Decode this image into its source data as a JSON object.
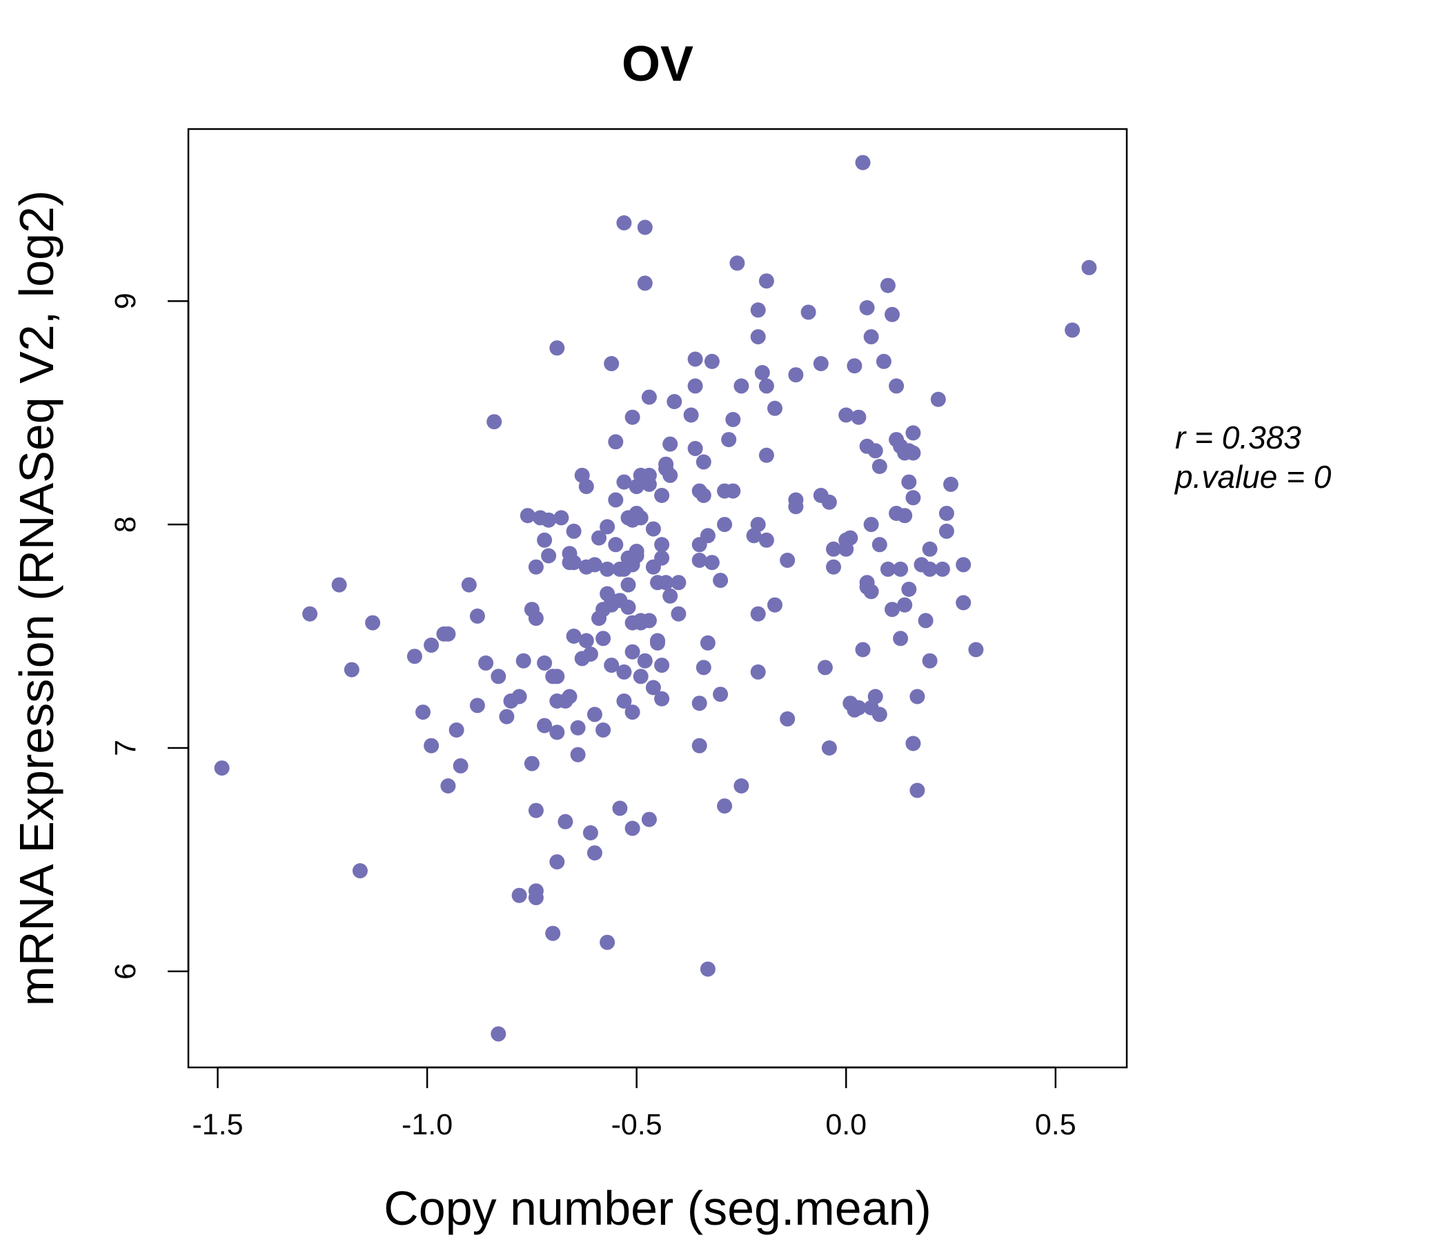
{
  "chart_data": {
    "type": "scatter",
    "title": "OV",
    "xlabel": "Copy number (seg.mean)",
    "ylabel": "mRNA Expression (RNASeq V2, log2)",
    "xlim": [
      -1.57,
      0.67
    ],
    "ylim": [
      5.57,
      9.77
    ],
    "xticks": [
      -1.5,
      -1.0,
      -0.5,
      0.0,
      0.5
    ],
    "xtick_labels": [
      "-1.5",
      "-1.0",
      "-0.5",
      "0.0",
      "0.5"
    ],
    "yticks": [
      6,
      7,
      8,
      9
    ],
    "ytick_labels": [
      "6",
      "7",
      "8",
      "9"
    ],
    "grid": false,
    "point_color": "#7470b5",
    "annotations": {
      "r_text": "r = 0.383",
      "p_text": "p.value = 0"
    },
    "points": [
      [
        -1.49,
        6.91
      ],
      [
        -1.28,
        7.6
      ],
      [
        -1.21,
        7.73
      ],
      [
        -1.18,
        7.35
      ],
      [
        -1.16,
        6.45
      ],
      [
        -1.13,
        7.56
      ],
      [
        -1.03,
        7.41
      ],
      [
        -1.01,
        7.16
      ],
      [
        -0.99,
        7.46
      ],
      [
        -0.99,
        7.01
      ],
      [
        -0.96,
        7.51
      ],
      [
        -0.95,
        7.51
      ],
      [
        -0.95,
        6.83
      ],
      [
        -0.93,
        7.08
      ],
      [
        -0.92,
        6.92
      ],
      [
        -0.9,
        7.73
      ],
      [
        -0.88,
        7.19
      ],
      [
        -0.88,
        7.59
      ],
      [
        -0.86,
        7.38
      ],
      [
        -0.84,
        8.46
      ],
      [
        -0.83,
        5.72
      ],
      [
        -0.83,
        7.32
      ],
      [
        -0.81,
        7.14
      ],
      [
        -0.8,
        7.21
      ],
      [
        -0.78,
        7.23
      ],
      [
        -0.78,
        6.34
      ],
      [
        -0.77,
        7.39
      ],
      [
        -0.76,
        8.04
      ],
      [
        -0.75,
        7.62
      ],
      [
        -0.75,
        6.93
      ],
      [
        -0.74,
        6.36
      ],
      [
        -0.74,
        6.33
      ],
      [
        -0.74,
        7.81
      ],
      [
        -0.74,
        7.58
      ],
      [
        -0.74,
        6.72
      ],
      [
        -0.73,
        8.03
      ],
      [
        -0.72,
        7.93
      ],
      [
        -0.72,
        7.38
      ],
      [
        -0.72,
        7.1
      ],
      [
        -0.71,
        8.02
      ],
      [
        -0.71,
        7.86
      ],
      [
        -0.7,
        7.32
      ],
      [
        -0.7,
        6.17
      ],
      [
        -0.69,
        7.32
      ],
      [
        -0.69,
        7.21
      ],
      [
        -0.69,
        6.49
      ],
      [
        -0.69,
        7.07
      ],
      [
        -0.69,
        8.79
      ],
      [
        -0.68,
        8.03
      ],
      [
        -0.67,
        7.21
      ],
      [
        -0.67,
        6.67
      ],
      [
        -0.66,
        7.23
      ],
      [
        -0.66,
        7.87
      ],
      [
        -0.66,
        7.83
      ],
      [
        -0.65,
        7.97
      ],
      [
        -0.65,
        7.5
      ],
      [
        -0.65,
        7.83
      ],
      [
        -0.64,
        7.09
      ],
      [
        -0.64,
        6.97
      ],
      [
        -0.63,
        8.22
      ],
      [
        -0.63,
        7.4
      ],
      [
        -0.62,
        8.17
      ],
      [
        -0.62,
        7.48
      ],
      [
        -0.62,
        7.81
      ],
      [
        -0.61,
        6.62
      ],
      [
        -0.61,
        7.42
      ],
      [
        -0.6,
        6.53
      ],
      [
        -0.6,
        7.82
      ],
      [
        -0.6,
        7.15
      ],
      [
        -0.59,
        7.94
      ],
      [
        -0.59,
        7.58
      ],
      [
        -0.58,
        7.62
      ],
      [
        -0.58,
        7.49
      ],
      [
        -0.58,
        7.08
      ],
      [
        -0.57,
        6.13
      ],
      [
        -0.57,
        7.99
      ],
      [
        -0.57,
        7.8
      ],
      [
        -0.57,
        7.69
      ],
      [
        -0.56,
        7.64
      ],
      [
        -0.56,
        7.66
      ],
      [
        -0.56,
        8.72
      ],
      [
        -0.56,
        7.37
      ],
      [
        -0.55,
        7.91
      ],
      [
        -0.55,
        8.37
      ],
      [
        -0.55,
        8.11
      ],
      [
        -0.54,
        7.8
      ],
      [
        -0.54,
        7.66
      ],
      [
        -0.54,
        6.73
      ],
      [
        -0.53,
        8.19
      ],
      [
        -0.53,
        9.35
      ],
      [
        -0.53,
        7.21
      ],
      [
        -0.53,
        7.34
      ],
      [
        -0.53,
        7.8
      ],
      [
        -0.52,
        7.85
      ],
      [
        -0.52,
        7.73
      ],
      [
        -0.52,
        7.63
      ],
      [
        -0.52,
        8.03
      ],
      [
        -0.51,
        8.48
      ],
      [
        -0.51,
        7.43
      ],
      [
        -0.51,
        7.16
      ],
      [
        -0.51,
        6.64
      ],
      [
        -0.51,
        7.82
      ],
      [
        -0.51,
        8.02
      ],
      [
        -0.51,
        7.56
      ],
      [
        -0.5,
        8.04
      ],
      [
        -0.5,
        7.86
      ],
      [
        -0.5,
        8.05
      ],
      [
        -0.5,
        8.17
      ],
      [
        -0.5,
        7.88
      ],
      [
        -0.49,
        7.56
      ],
      [
        -0.49,
        7.57
      ],
      [
        -0.49,
        8.03
      ],
      [
        -0.49,
        7.32
      ],
      [
        -0.49,
        8.22
      ],
      [
        -0.48,
        9.33
      ],
      [
        -0.48,
        8.2
      ],
      [
        -0.48,
        9.08
      ],
      [
        -0.48,
        7.39
      ],
      [
        -0.47,
        8.22
      ],
      [
        -0.47,
        6.68
      ],
      [
        -0.47,
        8.57
      ],
      [
        -0.47,
        8.18
      ],
      [
        -0.47,
        7.57
      ],
      [
        -0.46,
        7.98
      ],
      [
        -0.46,
        7.81
      ],
      [
        -0.46,
        7.27
      ],
      [
        -0.45,
        7.48
      ],
      [
        -0.45,
        7.74
      ],
      [
        -0.45,
        7.47
      ],
      [
        -0.44,
        7.91
      ],
      [
        -0.44,
        7.85
      ],
      [
        -0.44,
        7.22
      ],
      [
        -0.44,
        7.37
      ],
      [
        -0.44,
        8.13
      ],
      [
        -0.43,
        7.74
      ],
      [
        -0.43,
        8.25
      ],
      [
        -0.43,
        8.27
      ],
      [
        -0.42,
        7.68
      ],
      [
        -0.42,
        8.36
      ],
      [
        -0.42,
        8.22
      ],
      [
        -0.41,
        8.55
      ],
      [
        -0.4,
        7.74
      ],
      [
        -0.4,
        7.6
      ],
      [
        -0.37,
        8.49
      ],
      [
        -0.36,
        8.74
      ],
      [
        -0.36,
        8.62
      ],
      [
        -0.36,
        8.34
      ],
      [
        -0.35,
        8.15
      ],
      [
        -0.35,
        7.91
      ],
      [
        -0.35,
        7.84
      ],
      [
        -0.35,
        7.2
      ],
      [
        -0.35,
        7.01
      ],
      [
        -0.34,
        7.36
      ],
      [
        -0.34,
        8.13
      ],
      [
        -0.34,
        8.28
      ],
      [
        -0.33,
        6.01
      ],
      [
        -0.33,
        7.47
      ],
      [
        -0.33,
        7.95
      ],
      [
        -0.32,
        8.73
      ],
      [
        -0.32,
        7.83
      ],
      [
        -0.3,
        7.75
      ],
      [
        -0.3,
        7.24
      ],
      [
        -0.29,
        8.15
      ],
      [
        -0.29,
        8.0
      ],
      [
        -0.29,
        6.74
      ],
      [
        -0.28,
        8.38
      ],
      [
        -0.27,
        8.47
      ],
      [
        -0.27,
        8.15
      ],
      [
        -0.26,
        9.17
      ],
      [
        -0.25,
        8.62
      ],
      [
        -0.25,
        6.83
      ],
      [
        -0.22,
        7.95
      ],
      [
        -0.21,
        8.84
      ],
      [
        -0.21,
        8.96
      ],
      [
        -0.21,
        8.0
      ],
      [
        -0.21,
        7.6
      ],
      [
        -0.21,
        7.34
      ],
      [
        -0.2,
        8.68
      ],
      [
        -0.19,
        8.62
      ],
      [
        -0.19,
        7.93
      ],
      [
        -0.19,
        8.31
      ],
      [
        -0.19,
        9.09
      ],
      [
        -0.17,
        8.52
      ],
      [
        -0.17,
        7.64
      ],
      [
        -0.14,
        7.84
      ],
      [
        -0.14,
        7.13
      ],
      [
        -0.12,
        8.11
      ],
      [
        -0.12,
        8.08
      ],
      [
        -0.12,
        8.67
      ],
      [
        -0.09,
        8.95
      ],
      [
        -0.06,
        8.72
      ],
      [
        -0.06,
        8.13
      ],
      [
        -0.05,
        7.36
      ],
      [
        -0.04,
        8.1
      ],
      [
        -0.04,
        7.0
      ],
      [
        -0.03,
        7.81
      ],
      [
        -0.03,
        7.89
      ],
      [
        0.0,
        8.49
      ],
      [
        0.0,
        7.93
      ],
      [
        0.0,
        7.89
      ],
      [
        0.01,
        7.94
      ],
      [
        0.01,
        7.2
      ],
      [
        0.02,
        8.71
      ],
      [
        0.02,
        7.17
      ],
      [
        0.03,
        7.18
      ],
      [
        0.03,
        8.48
      ],
      [
        0.04,
        9.62
      ],
      [
        0.04,
        7.44
      ],
      [
        0.05,
        8.97
      ],
      [
        0.05,
        8.35
      ],
      [
        0.05,
        7.74
      ],
      [
        0.05,
        7.72
      ],
      [
        0.06,
        8.84
      ],
      [
        0.06,
        7.7
      ],
      [
        0.06,
        7.18
      ],
      [
        0.06,
        8.0
      ],
      [
        0.07,
        7.23
      ],
      [
        0.07,
        8.33
      ],
      [
        0.08,
        7.91
      ],
      [
        0.08,
        8.26
      ],
      [
        0.08,
        7.15
      ],
      [
        0.09,
        8.73
      ],
      [
        0.1,
        9.07
      ],
      [
        0.1,
        7.8
      ],
      [
        0.11,
        7.62
      ],
      [
        0.11,
        8.94
      ],
      [
        0.12,
        8.62
      ],
      [
        0.12,
        8.05
      ],
      [
        0.12,
        8.38
      ],
      [
        0.13,
        7.49
      ],
      [
        0.13,
        7.8
      ],
      [
        0.13,
        8.35
      ],
      [
        0.14,
        8.04
      ],
      [
        0.14,
        7.64
      ],
      [
        0.14,
        8.32
      ],
      [
        0.15,
        8.33
      ],
      [
        0.15,
        8.19
      ],
      [
        0.15,
        7.71
      ],
      [
        0.16,
        7.02
      ],
      [
        0.16,
        8.12
      ],
      [
        0.16,
        8.41
      ],
      [
        0.16,
        8.32
      ],
      [
        0.17,
        7.23
      ],
      [
        0.17,
        6.81
      ],
      [
        0.18,
        7.82
      ],
      [
        0.19,
        7.57
      ],
      [
        0.2,
        7.39
      ],
      [
        0.2,
        7.89
      ],
      [
        0.2,
        7.8
      ],
      [
        0.22,
        8.56
      ],
      [
        0.23,
        7.8
      ],
      [
        0.24,
        7.97
      ],
      [
        0.24,
        8.05
      ],
      [
        0.25,
        8.18
      ],
      [
        0.28,
        7.65
      ],
      [
        0.28,
        7.82
      ],
      [
        0.31,
        7.44
      ],
      [
        0.54,
        8.87
      ],
      [
        0.58,
        9.15
      ]
    ]
  }
}
